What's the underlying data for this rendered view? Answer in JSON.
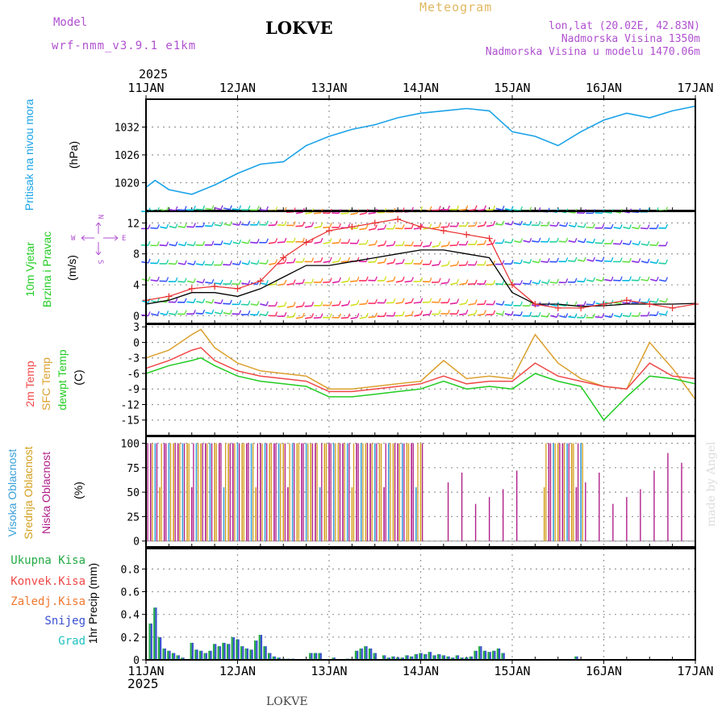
{
  "header": {
    "model_label": "Model",
    "model_name": "wrf-nmm_v3.9.1 e1km",
    "station": "LOKVE",
    "meteogram": "Meteogram",
    "lonlat": "lon,lat (20.02E, 42.83N)",
    "elevation": "Nadmorska Visina 1350m",
    "model_elevation": "Nadmorska Visina u modelu 1470.06m",
    "year_top": "2025",
    "year_bottom": "2025",
    "footer_station": "LOKVE",
    "made_by": "made by Angel"
  },
  "colors": {
    "pressure": "#1aa3e8",
    "temp2m": "#f04848",
    "sfc_temp": "#dca030",
    "dewpt": "#22cc22",
    "high_cloud": "#3aa0d8",
    "mid_cloud": "#d4a020",
    "low_cloud": "#b0208a",
    "precip_total": "#22aa44",
    "snow": "#3a50d0",
    "grad": "#20c0c0",
    "wind_speed": "#000000",
    "gust": "#e83030",
    "header_purple": "#b050d0",
    "header_gold": "#e0b860"
  },
  "chart_data": [
    {
      "type": "line",
      "panel": "pressure",
      "ylabel": [
        "Pritisak na nivou mora",
        "(hPa)"
      ],
      "x_ticks": [
        "11JAN",
        "12JAN",
        "13JAN",
        "14JAN",
        "15JAN",
        "16JAN",
        "17JAN"
      ],
      "yticks": [
        1020,
        1026,
        1032
      ],
      "ylim": [
        1014,
        1038
      ],
      "grid": true,
      "x": [
        0,
        0.1,
        0.25,
        0.5,
        0.75,
        1.0,
        1.25,
        1.5,
        1.75,
        2.0,
        2.25,
        2.5,
        2.75,
        3.0,
        3.25,
        3.5,
        3.75,
        4.0,
        4.25,
        4.5,
        4.75,
        5.0,
        5.25,
        5.5,
        5.75,
        6.0
      ],
      "series": [
        {
          "values": [
            1019,
            1020.5,
            1018.5,
            1017.5,
            1019.5,
            1022,
            1024,
            1024.5,
            1028,
            1030,
            1031.5,
            1032.5,
            1034,
            1035,
            1035.5,
            1036,
            1035.5,
            1031,
            1030,
            1028,
            1031,
            1033.5,
            1035,
            1034,
            1035.5,
            1036.5
          ]
        }
      ]
    },
    {
      "type": "line",
      "panel": "wind",
      "ylabel": [
        "10m Vjetar",
        "Brzina i Pravac",
        "(m/s)"
      ],
      "compass": {
        "north": "N",
        "south": "S",
        "west": "W",
        "east": "E"
      },
      "yticks": [
        0,
        4,
        8,
        12
      ],
      "ylim": [
        -1,
        13.5
      ],
      "grid": true,
      "x": [
        0,
        0.25,
        0.5,
        0.75,
        1.0,
        1.25,
        1.5,
        1.75,
        2.0,
        2.25,
        2.5,
        2.75,
        3.0,
        3.25,
        3.5,
        3.75,
        4.0,
        4.25,
        4.5,
        4.75,
        5.0,
        5.25,
        5.5,
        5.75,
        6.0
      ],
      "series": [
        {
          "values": [
            1.5,
            2.0,
            3.0,
            3.0,
            2.5,
            3.5,
            5.0,
            6.5,
            6.5,
            7.0,
            7.5,
            8.0,
            8.5,
            8.5,
            8.0,
            7.5,
            3.0,
            1.5,
            1.5,
            1.2,
            1.3,
            1.5,
            1.5,
            1.5,
            1.6
          ]
        },
        {
          "values": [
            2.0,
            2.5,
            3.5,
            3.8,
            3.5,
            4.5,
            7.5,
            9.5,
            11.0,
            11.5,
            12.0,
            12.5,
            11.5,
            11.0,
            10.5,
            10.0,
            4.0,
            1.5,
            1.0,
            1.0,
            1.5,
            2.0,
            1.5,
            1.0,
            1.5
          ]
        }
      ]
    },
    {
      "type": "line",
      "panel": "temperature",
      "ylabel": [
        "2m Temp",
        "SFC Temp",
        "dewpt Temp",
        "(C)"
      ],
      "yticks": [
        -15,
        -12,
        -9,
        -6,
        -3,
        0,
        3
      ],
      "ylim": [
        -18,
        3.5
      ],
      "grid": true,
      "x": [
        0,
        0.25,
        0.5,
        0.6,
        0.75,
        1.0,
        1.25,
        1.5,
        1.75,
        2.0,
        2.25,
        2.5,
        2.75,
        3.0,
        3.25,
        3.5,
        3.75,
        4.0,
        4.25,
        4.5,
        4.75,
        5.0,
        5.25,
        5.5,
        5.75,
        6.0
      ],
      "series": [
        {
          "values": [
            -5,
            -3.5,
            -1.5,
            -1,
            -3.5,
            -5.5,
            -6.5,
            -7,
            -7.5,
            -9.5,
            -9.5,
            -9,
            -8.5,
            -8,
            -6.5,
            -8,
            -7.5,
            -7.5,
            -4,
            -6.5,
            -7.5,
            -8.5,
            -9,
            -4,
            -6.5,
            -7
          ]
        },
        {
          "values": [
            -3,
            -1.5,
            1.5,
            2.5,
            -1,
            -4,
            -5.5,
            -6,
            -6.5,
            -9,
            -9,
            -8.5,
            -8,
            -7.5,
            -3.5,
            -7,
            -6.5,
            -7,
            1.5,
            -4,
            -7,
            -8.5,
            -9,
            0,
            -5,
            -11
          ]
        },
        {
          "values": [
            -6,
            -4.5,
            -3.5,
            -3,
            -4.5,
            -6.5,
            -7.5,
            -8,
            -8.5,
            -10.5,
            -10.5,
            -10,
            -9.5,
            -9,
            -7.5,
            -9,
            -8.5,
            -9,
            -6,
            -7.5,
            -8.5,
            -15,
            -10.5,
            -6.5,
            -7,
            -8
          ]
        }
      ]
    },
    {
      "type": "bar",
      "panel": "cloud",
      "ylabel": [
        "Visoka Oblacnost",
        "Srednja Oblacnost",
        "Niska Oblacnost",
        "(%)"
      ],
      "yticks": [
        0,
        25,
        50,
        75,
        100
      ],
      "ylim": [
        -6,
        107
      ],
      "grid": true
    },
    {
      "type": "bar",
      "panel": "precip",
      "ylabel": [
        "1hr Precip (mm)"
      ],
      "legend": [
        "Ukupna Kisa",
        "Konvek.Kisa",
        "Zaledj.Kisa",
        "Snijeg",
        "Grad"
      ],
      "yticks": [
        0,
        0.2,
        0.4,
        0.6,
        0.8
      ],
      "ylim": [
        0,
        0.98
      ],
      "grid": true,
      "x": [
        0.05,
        0.1,
        0.15,
        0.2,
        0.25,
        0.3,
        0.35,
        0.4,
        0.5,
        0.55,
        0.6,
        0.65,
        0.7,
        0.75,
        0.8,
        0.85,
        0.9,
        0.95,
        1.0,
        1.05,
        1.1,
        1.15,
        1.2,
        1.25,
        1.3,
        1.35,
        1.4,
        1.45,
        1.5,
        1.55,
        1.6,
        1.8,
        1.85,
        1.9,
        2.05,
        2.2,
        2.25,
        2.3,
        2.35,
        2.4,
        2.45,
        2.5,
        2.6,
        2.65,
        2.7,
        2.75,
        2.8,
        2.85,
        2.9,
        2.95,
        3.0,
        3.05,
        3.1,
        3.15,
        3.2,
        3.25,
        3.3,
        3.35,
        3.4,
        3.45,
        3.5,
        3.55,
        3.6,
        3.65,
        3.7,
        3.75,
        3.8,
        3.85,
        3.9,
        4.7
      ],
      "series": [
        {
          "values": [
            0.32,
            0.46,
            0.2,
            0.1,
            0.08,
            0.06,
            0.04,
            0.02,
            0.15,
            0.09,
            0.08,
            0.06,
            0.08,
            0.14,
            0.12,
            0.15,
            0.14,
            0.2,
            0.18,
            0.12,
            0.1,
            0.09,
            0.17,
            0.22,
            0.12,
            0.06,
            0.03,
            0.02,
            0.01,
            0.01,
            0.01,
            0.06,
            0.06,
            0.06,
            0.02,
            0.01,
            0.01,
            0.08,
            0.1,
            0.12,
            0.1,
            0.06,
            0.04,
            0.02,
            0.03,
            0.02,
            0.02,
            0.04,
            0.03,
            0.05,
            0.06,
            0.05,
            0.07,
            0.04,
            0.05,
            0.04,
            0.03,
            0.02,
            0.04,
            0.02,
            0.02,
            0.03,
            0.08,
            0.12,
            0.08,
            0.07,
            0.08,
            0.1,
            0.06,
            0.03
          ]
        }
      ]
    }
  ]
}
